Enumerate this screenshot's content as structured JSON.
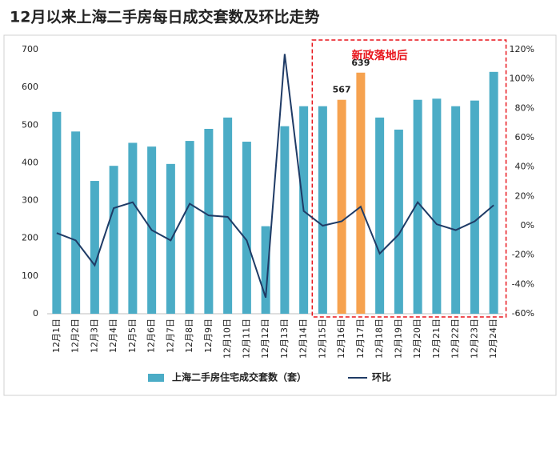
{
  "chart_data": {
    "type": "bar_line",
    "title": "12月以来上海二手房每日成交套数及环比走势",
    "annotation": "新政落地后",
    "categories": [
      "12月1日",
      "12月2日",
      "12月3日",
      "12月4日",
      "12月5日",
      "12月6日",
      "12月7日",
      "12月8日",
      "12月9日",
      "12月10日",
      "12月11日",
      "12月12日",
      "12月13日",
      "12月14日",
      "12月15日",
      "12月16日",
      "12月17日",
      "12月18日",
      "12月19日",
      "12月20日",
      "12月21日",
      "12月22日",
      "12月23日",
      "12月24日"
    ],
    "annotation_range": [
      "12月15日",
      "12月24日"
    ],
    "series": [
      {
        "name": "上海二手房住宅成交套数（套）",
        "type": "bar",
        "color": "#4bacc6",
        "values": [
          535,
          483,
          352,
          392,
          453,
          443,
          397,
          458,
          490,
          520,
          456,
          232,
          497,
          550,
          550,
          567,
          639,
          520,
          488,
          567,
          570,
          550,
          565,
          641
        ],
        "colors": [
          "#4bacc6",
          "#4bacc6",
          "#4bacc6",
          "#4bacc6",
          "#4bacc6",
          "#4bacc6",
          "#4bacc6",
          "#4bacc6",
          "#4bacc6",
          "#4bacc6",
          "#4bacc6",
          "#4bacc6",
          "#4bacc6",
          "#4bacc6",
          "#4bacc6",
          "#f6a24f",
          "#f6a24f",
          "#4bacc6",
          "#4bacc6",
          "#4bacc6",
          "#4bacc6",
          "#4bacc6",
          "#4bacc6",
          "#4bacc6"
        ],
        "show_labels": [
          false,
          false,
          false,
          false,
          false,
          false,
          false,
          false,
          false,
          false,
          false,
          false,
          false,
          false,
          false,
          true,
          true,
          false,
          false,
          false,
          false,
          false,
          false,
          false
        ]
      },
      {
        "name": "环比",
        "type": "line",
        "axis": "y2",
        "color": "#1f3b66",
        "values": [
          -5,
          -10,
          -27,
          12,
          16,
          -3,
          -10,
          15,
          7,
          6,
          -10,
          -49,
          117,
          10,
          0,
          3,
          13,
          -19,
          -6,
          16,
          1,
          -3,
          3,
          14
        ]
      }
    ],
    "ylim": [
      0,
      700
    ],
    "yticks": [
      0,
      100,
      200,
      300,
      400,
      500,
      600,
      700
    ],
    "y2lim": [
      -60,
      120
    ],
    "y2ticks": [
      {
        "value": -60,
        "label": "-60%"
      },
      {
        "value": -40,
        "label": "-40%"
      },
      {
        "value": -20,
        "label": "-20%"
      },
      {
        "value": 0,
        "label": "0%"
      },
      {
        "value": 20,
        "label": "20%"
      },
      {
        "value": 40,
        "label": "40%"
      },
      {
        "value": 60,
        "label": "60%"
      },
      {
        "value": 80,
        "label": "80%"
      },
      {
        "value": 100,
        "label": "100%"
      },
      {
        "value": 120,
        "label": "120%"
      }
    ],
    "grid": false
  }
}
